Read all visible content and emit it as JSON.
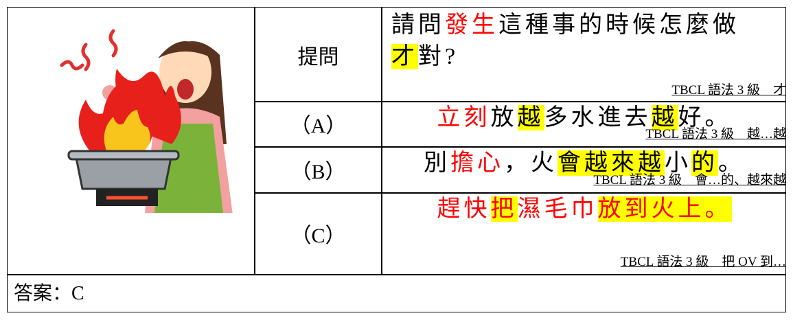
{
  "question": {
    "label": "提問",
    "lines": [
      [
        {
          "text": "請問"
        },
        {
          "text": "發生",
          "color": "#ff0000"
        },
        {
          "text": "這種事的時候怎麼做"
        }
      ],
      [
        {
          "text": "才",
          "highlight": "#ffff00"
        },
        {
          "text": "對?"
        }
      ]
    ],
    "grammar": "TBCL 語法 3 級　才"
  },
  "options": [
    {
      "label": "（A）",
      "segments": [
        {
          "text": "立刻",
          "color": "#ff0000"
        },
        {
          "text": "放"
        },
        {
          "text": "越",
          "highlight": "#ffff00"
        },
        {
          "text": "多水進去"
        },
        {
          "text": "越",
          "highlight": "#ffff00"
        },
        {
          "text": "好。"
        }
      ],
      "grammar": "TBCL 語法 3 級　越…越"
    },
    {
      "label": "（B）",
      "segments": [
        {
          "text": "別"
        },
        {
          "text": "擔心",
          "color": "#ff0000"
        },
        {
          "text": "，火"
        },
        {
          "text": "會越來越",
          "highlight": "#ffff00"
        },
        {
          "text": "小"
        },
        {
          "text": "的",
          "highlight": "#ffff00"
        },
        {
          "text": "。"
        }
      ],
      "grammar": "TBCL 語法 3 級　會…的、越來越"
    },
    {
      "label": "（C）",
      "segments": [
        {
          "text": "趕快",
          "color": "#ff0000"
        },
        {
          "text": "把",
          "color": "#ff0000",
          "highlight": "#ffff00"
        },
        {
          "text": "濕毛巾",
          "color": "#ff0000"
        },
        {
          "text": "放到火上。",
          "color": "#ff0000",
          "highlight": "#ffff00"
        }
      ],
      "grammar": "TBCL 語法 3 級　把 OV 到…"
    }
  ],
  "answer": "答案：C"
}
